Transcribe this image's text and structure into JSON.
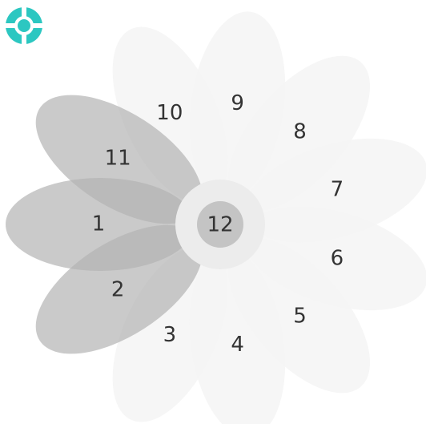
{
  "petals": [
    {
      "label": "1"
    },
    {
      "label": "2"
    },
    {
      "label": "3"
    },
    {
      "label": "4"
    },
    {
      "label": "5"
    },
    {
      "label": "6"
    },
    {
      "label": "7"
    },
    {
      "label": "8"
    },
    {
      "label": "9"
    },
    {
      "label": "10"
    },
    {
      "label": "11"
    }
  ],
  "center": {
    "label": "12"
  }
}
